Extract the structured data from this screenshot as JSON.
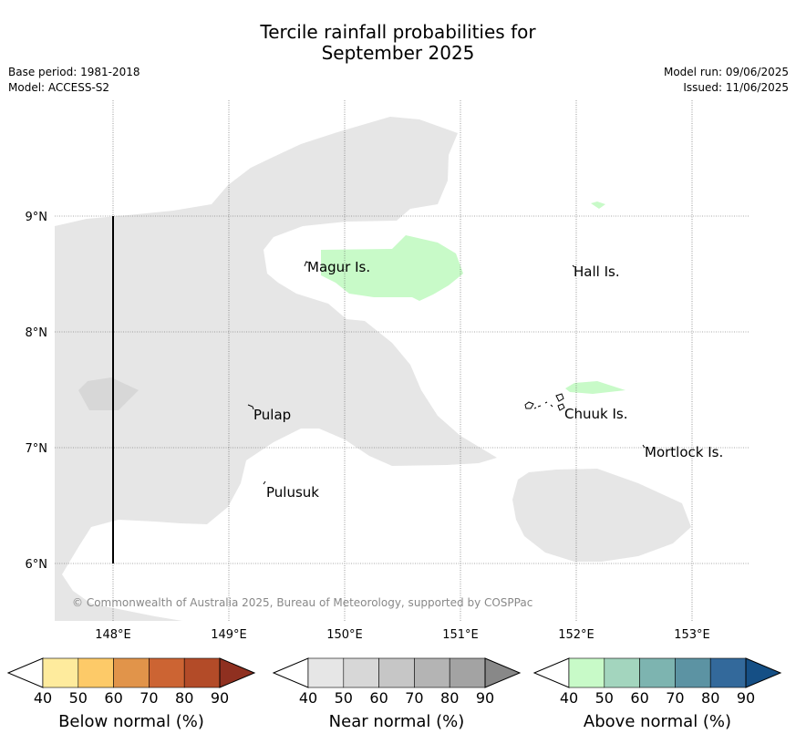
{
  "header": {
    "title_line1": "Tercile rainfall probabilities for",
    "title_line2": "September 2025",
    "base_period": "Base period: 1981-2018",
    "model": "Model: ACCESS-S2",
    "model_run": "Model run: 09/06/2025",
    "issued": "Issued: 11/06/2025"
  },
  "map": {
    "lon_labels": [
      "148°E",
      "149°E",
      "150°E",
      "151°E",
      "152°E",
      "153°E"
    ],
    "lat_labels": [
      "9°N",
      "8°N",
      "7°N",
      "6°N"
    ],
    "places": [
      {
        "name": "Magur Is."
      },
      {
        "name": "Hall Is."
      },
      {
        "name": "Pulap"
      },
      {
        "name": "Chuuk Is."
      },
      {
        "name": "Mortlock Is."
      },
      {
        "name": "Pulusuk"
      }
    ],
    "copyright": "© Commonwealth of Australia 2025, Bureau of Meteorology, supported by COSPPac"
  },
  "colors": {
    "near_normal_fill": "#e6e6e6",
    "near_normal_dark": "#d7d7d7",
    "above_normal_fill": "#c8fac8"
  },
  "legend": {
    "ticks": [
      "40",
      "50",
      "60",
      "70",
      "80",
      "90"
    ],
    "below": {
      "label": "Below normal (%)",
      "colors": [
        "#ffffff",
        "#feeb9d",
        "#fdca68",
        "#e1944a",
        "#cc6433",
        "#b34b28",
        "#8f3020"
      ]
    },
    "near": {
      "label": "Near normal (%)",
      "colors": [
        "#ffffff",
        "#e6e6e6",
        "#d7d7d7",
        "#c6c6c6",
        "#b4b4b4",
        "#a3a3a3",
        "#888888"
      ]
    },
    "above": {
      "label": "Above normal (%)",
      "colors": [
        "#ffffff",
        "#c8fac8",
        "#a3d5be",
        "#7db4b0",
        "#5c93a3",
        "#33699b",
        "#154f85"
      ]
    }
  }
}
